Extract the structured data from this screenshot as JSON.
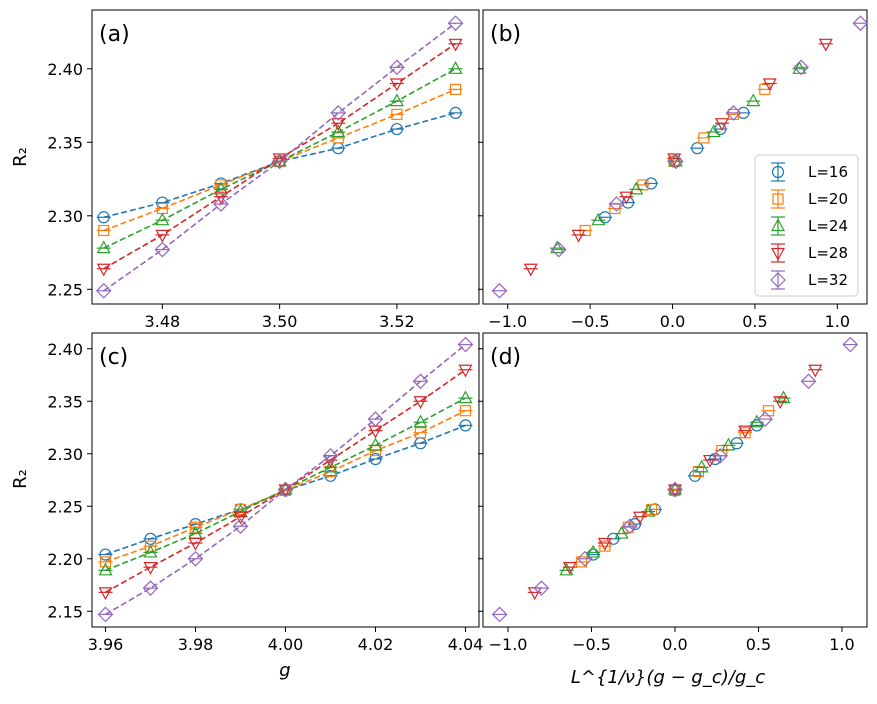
{
  "series_colors": [
    "#1f77b4",
    "#ff7f0e",
    "#2ca02c",
    "#d62728",
    "#9467bd"
  ],
  "series_markers": [
    "circle",
    "square",
    "triangle-up",
    "triangle-down",
    "diamond"
  ],
  "legend_labels": [
    "L=16",
    "L=20",
    "L=24",
    "L=28",
    "L=32"
  ],
  "chart_data": [
    {
      "id": "a",
      "type": "line",
      "panel_label": "(a)",
      "xlabel": "",
      "ylabel": "R₂",
      "xlim": [
        3.468,
        3.534
      ],
      "ylim": [
        2.24,
        2.44
      ],
      "xticks": [
        3.48,
        3.5,
        3.52
      ],
      "xtick_labels": [
        "3.48",
        "3.50",
        "3.52"
      ],
      "yticks": [
        2.25,
        2.3,
        2.35,
        2.4
      ],
      "ytick_labels": [
        "2.25",
        "2.30",
        "2.35",
        "2.40"
      ],
      "x": [
        3.47,
        3.48,
        3.49,
        3.5,
        3.51,
        3.52,
        3.53
      ],
      "series": [
        {
          "name": "L=16",
          "values": [
            2.299,
            2.309,
            2.322,
            2.337,
            2.346,
            2.359,
            2.37
          ]
        },
        {
          "name": "L=20",
          "values": [
            2.29,
            2.305,
            2.321,
            2.337,
            2.353,
            2.369,
            2.386
          ]
        },
        {
          "name": "L=24",
          "values": [
            2.278,
            2.297,
            2.318,
            2.337,
            2.357,
            2.378,
            2.4
          ]
        },
        {
          "name": "L=28",
          "values": [
            2.264,
            2.287,
            2.313,
            2.339,
            2.363,
            2.39,
            2.417
          ]
        },
        {
          "name": "L=32",
          "values": [
            2.249,
            2.277,
            2.308,
            2.337,
            2.37,
            2.401,
            2.431
          ]
        }
      ]
    },
    {
      "id": "b",
      "type": "scatter",
      "panel_label": "(b)",
      "xlabel": "",
      "ylabel": "",
      "xlim": [
        -1.15,
        1.18
      ],
      "ylim": [
        2.24,
        2.44
      ],
      "xticks": [
        -1.0,
        -0.5,
        0.0,
        0.5,
        1.0
      ],
      "xtick_labels": [
        "−1.0",
        "−0.5",
        "0.0",
        "0.5",
        "1.0"
      ],
      "yticks": [
        2.25,
        2.3,
        2.35,
        2.4
      ],
      "ytick_labels": [],
      "legend": "lower right",
      "series": [
        {
          "name": "L=16",
          "x": [
            -0.41,
            -0.27,
            -0.13,
            0.01,
            0.15,
            0.29,
            0.43
          ],
          "values": [
            2.299,
            2.309,
            2.322,
            2.337,
            2.346,
            2.359,
            2.37
          ]
        },
        {
          "name": "L=20",
          "x": [
            -0.53,
            -0.35,
            -0.18,
            0.01,
            0.19,
            0.37,
            0.56
          ],
          "values": [
            2.29,
            2.305,
            2.321,
            2.337,
            2.353,
            2.369,
            2.386
          ]
        },
        {
          "name": "L=24",
          "x": [
            -0.7,
            -0.45,
            -0.22,
            0.02,
            0.25,
            0.49,
            0.77
          ],
          "values": [
            2.278,
            2.297,
            2.318,
            2.337,
            2.357,
            2.378,
            2.4
          ]
        },
        {
          "name": "L=28",
          "x": [
            -0.86,
            -0.57,
            -0.28,
            0.01,
            0.3,
            0.59,
            0.93
          ],
          "values": [
            2.264,
            2.287,
            2.313,
            2.339,
            2.363,
            2.39,
            2.417
          ]
        },
        {
          "name": "L=32",
          "x": [
            -1.05,
            -0.69,
            -0.34,
            0.02,
            0.37,
            0.78,
            1.14
          ],
          "values": [
            2.249,
            2.277,
            2.308,
            2.337,
            2.37,
            2.401,
            2.431
          ]
        }
      ]
    },
    {
      "id": "c",
      "type": "line",
      "panel_label": "(c)",
      "xlabel": "g",
      "ylabel": "R₂",
      "xlim": [
        3.957,
        4.043
      ],
      "ylim": [
        2.135,
        2.415
      ],
      "xticks": [
        3.96,
        3.98,
        4.0,
        4.02,
        4.04
      ],
      "xtick_labels": [
        "3.96",
        "3.98",
        "4.00",
        "4.02",
        "4.04"
      ],
      "yticks": [
        2.15,
        2.2,
        2.25,
        2.3,
        2.35,
        2.4
      ],
      "ytick_labels": [
        "2.15",
        "2.20",
        "2.25",
        "2.30",
        "2.35",
        "2.40"
      ],
      "x": [
        3.96,
        3.97,
        3.98,
        3.99,
        4.0,
        4.01,
        4.02,
        4.03,
        4.04
      ],
      "series": [
        {
          "name": "L=16",
          "values": [
            2.204,
            2.219,
            2.233,
            2.247,
            2.265,
            2.279,
            2.295,
            2.31,
            2.327
          ]
        },
        {
          "name": "L=20",
          "values": [
            2.197,
            2.212,
            2.23,
            2.247,
            2.265,
            2.283,
            2.303,
            2.32,
            2.341
          ]
        },
        {
          "name": "L=24",
          "values": [
            2.189,
            2.206,
            2.224,
            2.245,
            2.266,
            2.287,
            2.308,
            2.33,
            2.353
          ]
        },
        {
          "name": "L=28",
          "values": [
            2.168,
            2.192,
            2.215,
            2.24,
            2.266,
            2.294,
            2.322,
            2.35,
            2.38
          ]
        },
        {
          "name": "L=32",
          "values": [
            2.147,
            2.172,
            2.2,
            2.231,
            2.266,
            2.298,
            2.333,
            2.369,
            2.404
          ]
        }
      ]
    },
    {
      "id": "d",
      "type": "scatter",
      "panel_label": "(d)",
      "xlabel": "L^{1/ν}(g − g_c)/g_c",
      "ylabel": "",
      "xlim": [
        -1.15,
        1.15
      ],
      "ylim": [
        2.135,
        2.415
      ],
      "xticks": [
        -1.0,
        -0.5,
        0.0,
        0.5,
        1.0
      ],
      "xtick_labels": [
        "−1.0",
        "−0.5",
        "0.0",
        "0.5",
        "1.0"
      ],
      "yticks": [
        2.15,
        2.2,
        2.25,
        2.3,
        2.35,
        2.4
      ],
      "ytick_labels": [],
      "series": [
        {
          "name": "L=16",
          "x": [
            -0.49,
            -0.37,
            -0.24,
            -0.12,
            0.0,
            0.12,
            0.24,
            0.37,
            0.49
          ],
          "values": [
            2.204,
            2.219,
            2.233,
            2.247,
            2.265,
            2.279,
            2.295,
            2.31,
            2.327
          ]
        },
        {
          "name": "L=20",
          "x": [
            -0.56,
            -0.42,
            -0.28,
            -0.14,
            0.0,
            0.14,
            0.28,
            0.42,
            0.56
          ],
          "values": [
            2.197,
            2.212,
            2.23,
            2.247,
            2.265,
            2.283,
            2.303,
            2.32,
            2.341
          ]
        },
        {
          "name": "L=24",
          "x": [
            -0.65,
            -0.49,
            -0.32,
            -0.16,
            0.0,
            0.16,
            0.32,
            0.49,
            0.65
          ],
          "values": [
            2.189,
            2.206,
            2.224,
            2.245,
            2.266,
            2.287,
            2.308,
            2.33,
            2.353
          ]
        },
        {
          "name": "L=28",
          "x": [
            -0.84,
            -0.63,
            -0.42,
            -0.21,
            0.0,
            0.21,
            0.42,
            0.63,
            0.84
          ],
          "values": [
            2.168,
            2.192,
            2.215,
            2.24,
            2.266,
            2.294,
            2.322,
            2.35,
            2.38
          ]
        },
        {
          "name": "L=32",
          "x": [
            -1.05,
            -0.8,
            -0.54,
            -0.27,
            0.0,
            0.27,
            0.54,
            0.8,
            1.05
          ],
          "values": [
            2.147,
            2.172,
            2.2,
            2.231,
            2.266,
            2.298,
            2.333,
            2.369,
            2.404
          ]
        }
      ]
    }
  ]
}
